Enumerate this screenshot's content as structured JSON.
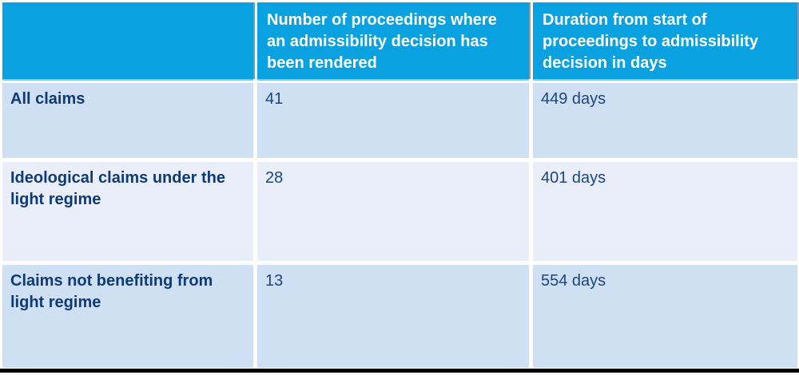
{
  "colors": {
    "header_bg": "#0aa1e0",
    "header_text": "#ffffff",
    "row_bg_a": "#cfe0f2",
    "row_bg_b": "#e9eef8",
    "label_text": "#0f3a78",
    "value_text": "#1c4585",
    "bottom_bar": "#000000"
  },
  "table": {
    "headers": {
      "blank": "",
      "proceedings": "Number of proceedings where an admissibility decision has been rendered",
      "duration": "Duration from start of proceedings to admissibility decision in days"
    },
    "rows": [
      {
        "label": "All claims",
        "count": "41",
        "duration": "449 days"
      },
      {
        "label": "Ideological claims under the light regime",
        "count": "28",
        "duration": "401 days"
      },
      {
        "label": "Claims not benefiting from light regime",
        "count": "13",
        "duration": "554 days"
      }
    ]
  }
}
